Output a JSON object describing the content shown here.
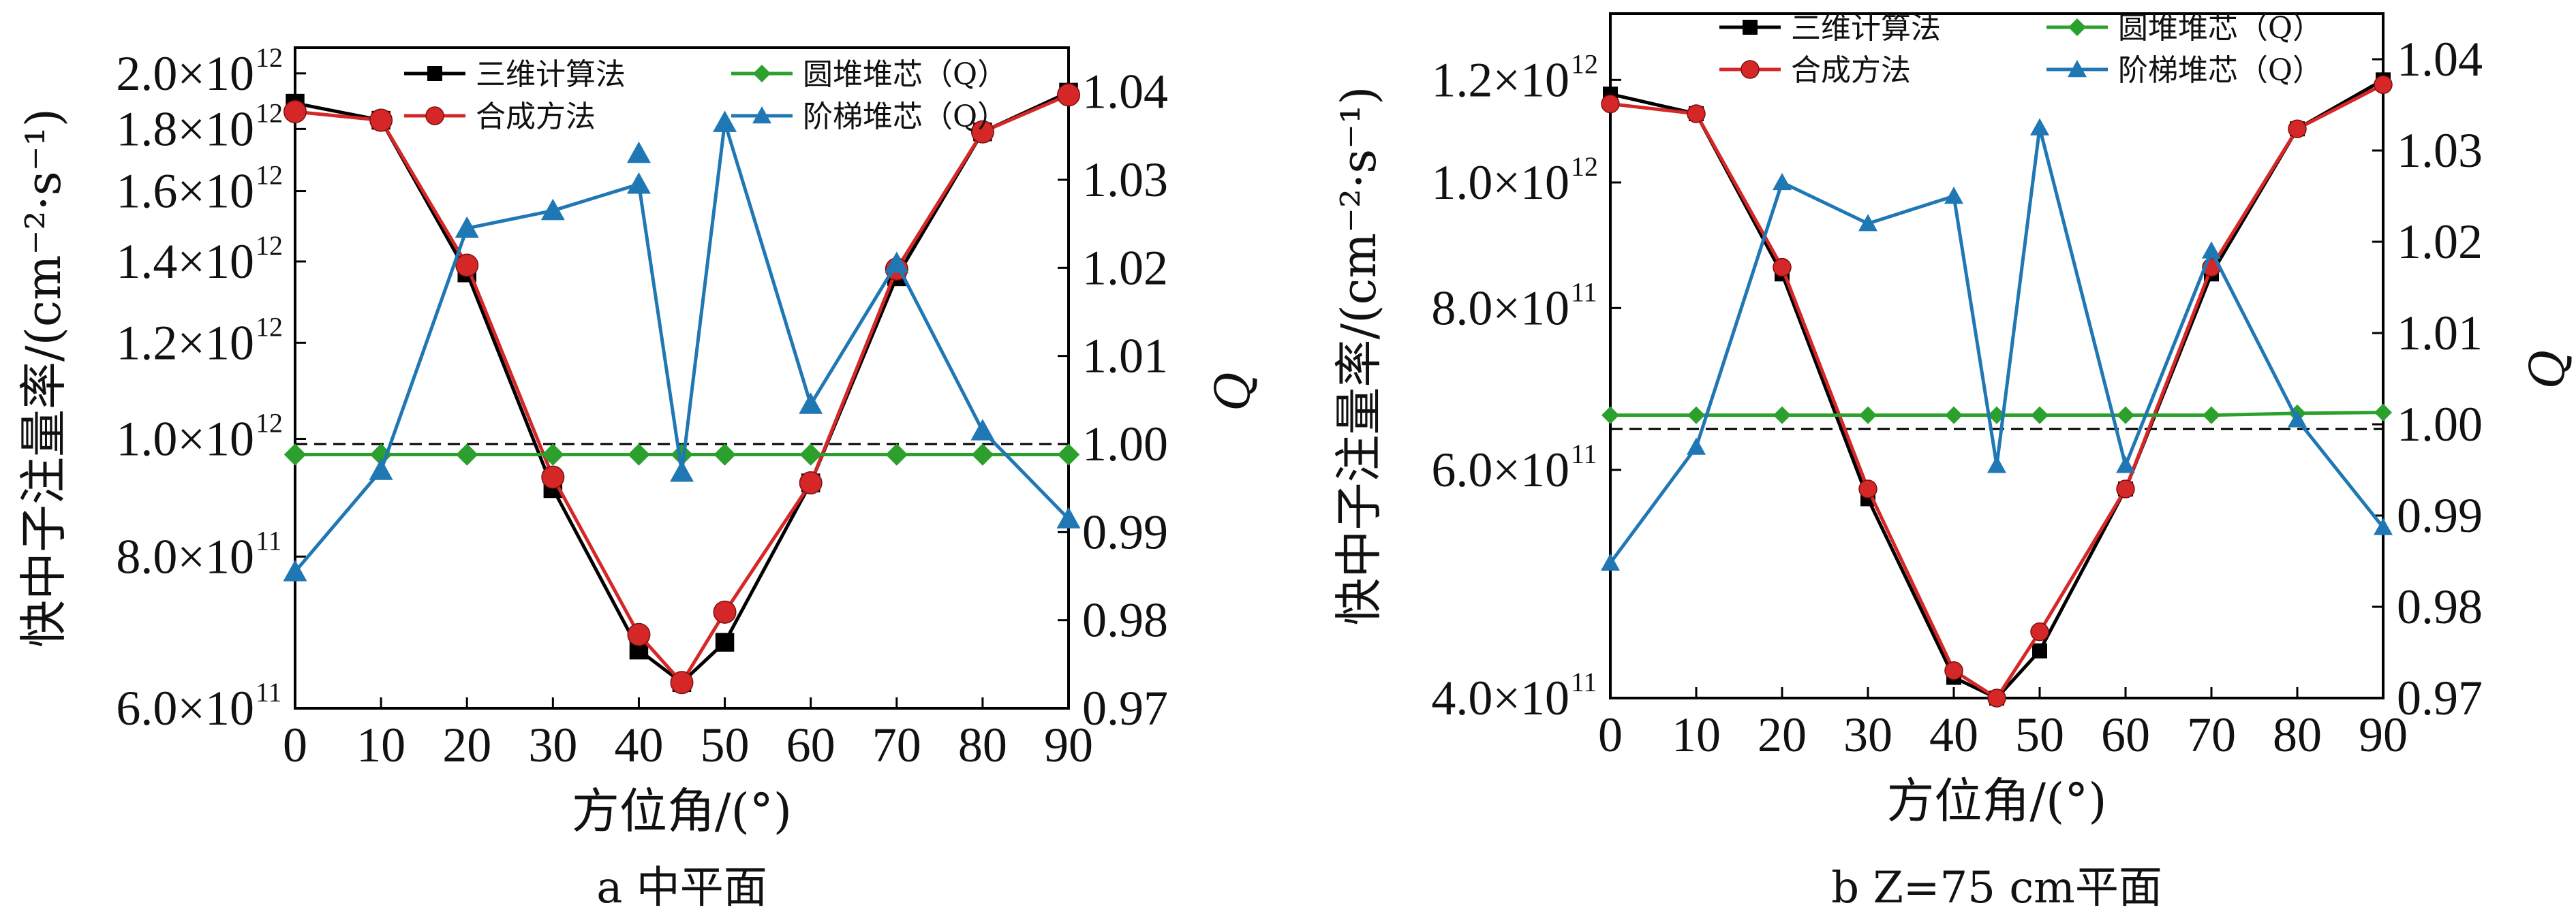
{
  "chart_data": [
    {
      "type": "line",
      "caption": "a  中平面",
      "xlabel": "方位角/(°)",
      "ylabel": "快中子注量率/(cm⁻²·s⁻¹)",
      "y2label": "Q",
      "x": [
        0,
        10,
        20,
        30,
        40,
        45,
        50,
        60,
        70,
        80,
        90
      ],
      "xticks": [
        "0",
        "10",
        "20",
        "30",
        "40",
        "50",
        "60",
        "70",
        "80",
        "90"
      ],
      "xlim": [
        0,
        90
      ],
      "y_scale": "log",
      "ylim": [
        600000000000.0,
        2100000000000.0
      ],
      "yticks": [
        {
          "v": 600000000000.0,
          "m": "6.0×10",
          "e": "11"
        },
        {
          "v": 800000000000.0,
          "m": "8.0×10",
          "e": "11"
        },
        {
          "v": 1000000000000.0,
          "m": "1.0×10",
          "e": "12"
        },
        {
          "v": 1200000000000.0,
          "m": "1.2×10",
          "e": "12"
        },
        {
          "v": 1400000000000.0,
          "m": "1.4×10",
          "e": "12"
        },
        {
          "v": 1600000000000.0,
          "m": "1.6×10",
          "e": "12"
        },
        {
          "v": 1800000000000.0,
          "m": "1.8×10",
          "e": "12"
        },
        {
          "v": 2000000000000.0,
          "m": "2.0×10",
          "e": "12"
        }
      ],
      "y2lim": [
        0.97,
        1.045
      ],
      "y2ticks": [
        "0.97",
        "0.98",
        "0.99",
        "1.00",
        "1.01",
        "1.02",
        "1.03",
        "1.04"
      ],
      "ref_line_y2": 1.0,
      "series": [
        {
          "name": "三维计算法",
          "axis": "left",
          "color": "#000000",
          "marker": "square",
          "values": [
            1890000000000.0,
            1830000000000.0,
            1370000000000.0,
            910000000000.0,
            670000000000.0,
            630000000000.0,
            680000000000.0,
            920000000000.0,
            1360000000000.0,
            1790000000000.0,
            1930000000000.0
          ]
        },
        {
          "name": "合成方法",
          "axis": "left",
          "color": "#d62728",
          "marker": "circle",
          "values": [
            1860000000000.0,
            1830000000000.0,
            1390000000000.0,
            930000000000.0,
            690000000000.0,
            630000000000.0,
            720000000000.0,
            920000000000.0,
            1380000000000.0,
            1790000000000.0,
            1920000000000.0
          ]
        },
        {
          "name": "圆堆堆芯（Q）",
          "axis": "right",
          "color": "#2ca02c",
          "marker": "diamond",
          "values": [
            0.9988,
            0.9988,
            0.9988,
            0.9988,
            0.9988,
            0.9988,
            0.9988,
            0.9988,
            0.9988,
            0.9988,
            0.9988
          ]
        },
        {
          "name": "阶梯堆芯（Q）",
          "axis": "right",
          "color": "#1f77b4",
          "marker": "triangle",
          "values": [
            0.9855,
            0.997,
            1.0245,
            1.0265,
            1.0295,
            0.9968,
            1.0365,
            1.0045,
            1.0205,
            1.0015,
            0.9915
          ]
        }
      ],
      "extra_points": [
        {
          "series": "阶梯堆芯（Q）",
          "x": 40,
          "y": 1.033
        }
      ],
      "legend": {
        "placement": "top",
        "columns": 2
      }
    },
    {
      "type": "line",
      "caption": "b  Z=75 cm平面",
      "xlabel": "方位角/(°)",
      "ylabel": "快中子注量率/(cm⁻²·s⁻¹)",
      "y2label": "Q",
      "x": [
        0,
        10,
        20,
        30,
        40,
        45,
        50,
        60,
        70,
        80,
        90
      ],
      "xticks": [
        "0",
        "10",
        "20",
        "30",
        "40",
        "50",
        "60",
        "70",
        "80",
        "90"
      ],
      "xlim": [
        0,
        90
      ],
      "y_scale": "log",
      "ylim": [
        400000000000.0,
        1350000000000.0
      ],
      "yticks": [
        {
          "v": 400000000000.0,
          "m": "4.0×10",
          "e": "11"
        },
        {
          "v": 600000000000.0,
          "m": "6.0×10",
          "e": "11"
        },
        {
          "v": 800000000000.0,
          "m": "8.0×10",
          "e": "11"
        },
        {
          "v": 1000000000000.0,
          "m": "1.0×10",
          "e": "12"
        },
        {
          "v": 1200000000000.0,
          "m": "1.2×10",
          "e": "12"
        }
      ],
      "y2lim": [
        0.97,
        1.045
      ],
      "y2ticks": [
        "0.97",
        "0.98",
        "0.99",
        "1.00",
        "1.01",
        "1.02",
        "1.03",
        "1.04"
      ],
      "ref_line_y2": 0.9995,
      "series": [
        {
          "name": "三维计算法",
          "axis": "left",
          "color": "#000000",
          "marker": "square",
          "values": [
            1170000000000.0,
            1130000000000.0,
            850000000000.0,
            570000000000.0,
            415000000000.0,
            400000000000.0,
            435000000000.0,
            580000000000.0,
            850000000000.0,
            1100000000000.0,
            1200000000000.0
          ]
        },
        {
          "name": "合成方法",
          "axis": "left",
          "color": "#d62728",
          "marker": "circle",
          "values": [
            1150000000000.0,
            1130000000000.0,
            860000000000.0,
            580000000000.0,
            420000000000.0,
            400000000000.0,
            450000000000.0,
            580000000000.0,
            860000000000.0,
            1100000000000.0,
            1190000000000.0
          ]
        },
        {
          "name": "圆堆堆芯（Q）",
          "axis": "right",
          "color": "#2ca02c",
          "marker": "diamond",
          "values": [
            1.001,
            1.001,
            1.001,
            1.001,
            1.001,
            1.001,
            1.001,
            1.001,
            1.001,
            1.0012,
            1.0013
          ]
        },
        {
          "name": "阶梯堆芯（Q）",
          "axis": "right",
          "color": "#1f77b4",
          "marker": "triangle",
          "values": [
            0.9848,
            0.9975,
            1.0265,
            1.022,
            1.025,
            0.9955,
            1.0325,
            0.9955,
            1.019,
            1.0005,
            0.9887
          ]
        }
      ],
      "legend": {
        "placement": "top",
        "columns": 2
      }
    }
  ]
}
